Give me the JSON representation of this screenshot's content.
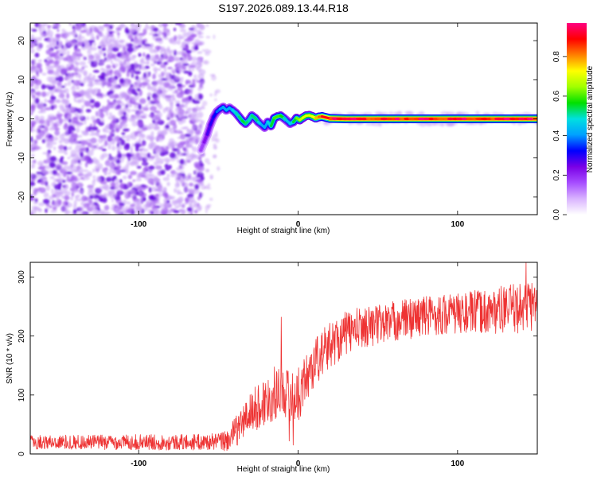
{
  "title": "S197.2026.089.13.44.R18",
  "chart_data": [
    {
      "type": "heatmap",
      "name": "spectrogram",
      "xlabel": "Height of straight line (km)",
      "ylabel": "Frequency (Hz)",
      "xlim": [
        -168,
        150
      ],
      "ylim": [
        -24.5,
        24.5
      ],
      "xticks": [
        -100,
        0,
        100
      ],
      "yticks": [
        -20,
        -10,
        0,
        10,
        20
      ],
      "colorbar": {
        "label": "Normalized spectral amplitude",
        "range": [
          0,
          0.97
        ],
        "ticks": [
          0.0,
          0.2,
          0.4,
          0.6,
          0.8
        ],
        "colors": [
          "#ffffff",
          "#d9b3ff",
          "#a64dff",
          "#7a00e6",
          "#0000ff",
          "#00a0ff",
          "#00e0e0",
          "#00e000",
          "#a0ff00",
          "#ffff00",
          "#ff8000",
          "#ff0000",
          "#ff0080"
        ]
      },
      "noise_region_km": [
        -168,
        -60
      ],
      "ridge": {
        "x": [
          -61,
          -59,
          -57,
          -55,
          -53,
          -51,
          -49,
          -47,
          -45,
          -43,
          -41,
          -39,
          -37,
          -35,
          -33,
          -31,
          -29,
          -27,
          -25,
          -23,
          -21,
          -19,
          -17,
          -15,
          -13,
          -11,
          -9,
          -7,
          -5,
          -3,
          -1,
          1,
          3,
          5,
          7,
          9,
          11,
          13,
          15,
          20,
          30,
          50,
          100,
          150
        ],
        "freq_hz": [
          -8,
          -6,
          -4,
          -1.5,
          0.5,
          1.8,
          2.5,
          3,
          2.2,
          2.8,
          2.2,
          1.5,
          0.5,
          -0.5,
          -1.2,
          -0.4,
          0.8,
          0.2,
          -0.8,
          -1.5,
          -2.2,
          -0.8,
          -1.8,
          0.2,
          0.6,
          0.8,
          0.2,
          -0.5,
          -1.2,
          -0.8,
          0.2,
          -0.3,
          0.3,
          0.8,
          0.9,
          0.6,
          0.2,
          0.5,
          0.6,
          0.1,
          0.0,
          0.0,
          0.0,
          0.0
        ],
        "amplitude": [
          0.15,
          0.2,
          0.25,
          0.3,
          0.3,
          0.35,
          0.4,
          0.4,
          0.45,
          0.4,
          0.45,
          0.5,
          0.5,
          0.55,
          0.55,
          0.5,
          0.5,
          0.55,
          0.5,
          0.45,
          0.4,
          0.45,
          0.5,
          0.6,
          0.6,
          0.6,
          0.55,
          0.45,
          0.45,
          0.5,
          0.6,
          0.65,
          0.7,
          0.7,
          0.7,
          0.7,
          0.75,
          0.8,
          0.85,
          0.95,
          0.95,
          0.95,
          0.95,
          0.95
        ]
      }
    },
    {
      "type": "line",
      "name": "snr",
      "xlabel": "Height of straight line (km)",
      "ylabel": "SNR (10 * v/v)",
      "xlim": [
        -168,
        150
      ],
      "ylim": [
        0,
        325
      ],
      "xticks": [
        -100,
        0,
        100
      ],
      "yticks": [
        0,
        100,
        200,
        300
      ],
      "color": "#ee3333",
      "trend": {
        "x": [
          -168,
          -100,
          -60,
          -45,
          -40,
          -30,
          -20,
          -10,
          -5,
          0,
          10,
          20,
          30,
          40,
          60,
          80,
          100,
          120,
          140,
          150
        ],
        "y": [
          20,
          20,
          20,
          22,
          35,
          70,
          90,
          115,
          95,
          100,
          155,
          185,
          205,
          215,
          225,
          235,
          238,
          242,
          248,
          255
        ]
      },
      "noise_amplitude": {
        "x": [
          -168,
          -50,
          -40,
          -20,
          0,
          40,
          100,
          150
        ],
        "y": [
          12,
          14,
          25,
          45,
          45,
          35,
          35,
          45
        ]
      },
      "events": [
        {
          "x": -10.5,
          "y": 232
        },
        {
          "x": -5.5,
          "y": 22
        },
        {
          "x": -3,
          "y": 15
        },
        {
          "x": 143,
          "y": 325
        }
      ]
    }
  ]
}
